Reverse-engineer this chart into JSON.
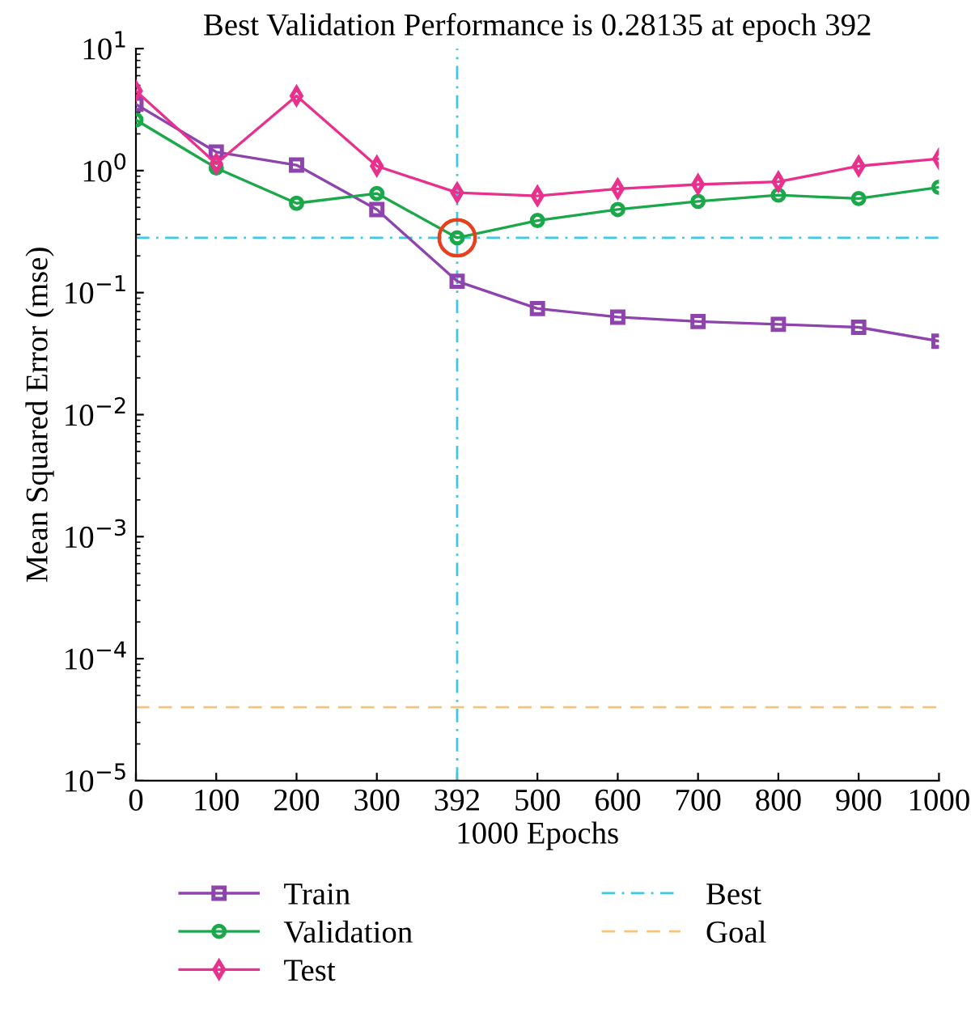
{
  "chart_data": {
    "type": "line",
    "title": "Best Validation Performance is 0.28135 at epoch 392",
    "xlabel": "1000 Epochs",
    "ylabel": "Mean Squared Error (mse)",
    "categories": [
      "0",
      "100",
      "200",
      "300",
      "392",
      "500",
      "600",
      "700",
      "800",
      "900",
      "1000"
    ],
    "series": [
      {
        "name": "Train",
        "color": "#8e44ad",
        "marker": "square",
        "values": [
          3.5,
          1.42,
          1.11,
          0.48,
          0.124,
          0.074,
          0.063,
          0.058,
          0.055,
          0.052,
          0.04
        ]
      },
      {
        "name": "Validation",
        "color": "#1aa84a",
        "marker": "circle",
        "values": [
          2.6,
          1.05,
          0.54,
          0.65,
          0.28135,
          0.39,
          0.48,
          0.56,
          0.63,
          0.59,
          0.73
        ]
      },
      {
        "name": "Test",
        "color": "#e8308c",
        "marker": "diamond",
        "values": [
          4.5,
          1.14,
          4.1,
          1.09,
          0.66,
          0.62,
          0.71,
          0.77,
          0.81,
          1.09,
          1.25
        ]
      },
      {
        "type": "scatter",
        "color": "#e8401c",
        "marker": "circle",
        "x": [
          "392"
        ],
        "values": [
          0.28135
        ]
      }
    ],
    "ref_lines": [
      {
        "axis": "x",
        "value": "392",
        "label": "Best",
        "color": "#3cc8e6",
        "line_style": "dashdot"
      },
      {
        "axis": "y",
        "value": 0.28135,
        "color": "#3cc8e6",
        "line_style": "dashdot"
      },
      {
        "axis": "y",
        "value": 4e-05,
        "label": "Goal",
        "color": "#f7c27a",
        "line_style": "dashed"
      }
    ],
    "log": true,
    "ylim": [
      1e-05,
      10
    ],
    "yticks": [
      {
        "value": 1e-05,
        "label": "10$^{−5}$"
      },
      {
        "value": 0.0001,
        "label": "10$^{−4}$"
      },
      {
        "value": 0.001,
        "label": "10$^{−3}$"
      },
      {
        "value": 0.01,
        "label": "10$^{−2}$"
      },
      {
        "value": 0.1,
        "label": "10$^{−1}$"
      },
      {
        "value": 1,
        "label": "10$^{0}$"
      },
      {
        "value": 10,
        "label": "10$^{1}$"
      }
    ],
    "grid": false,
    "legend": "bottom"
  }
}
